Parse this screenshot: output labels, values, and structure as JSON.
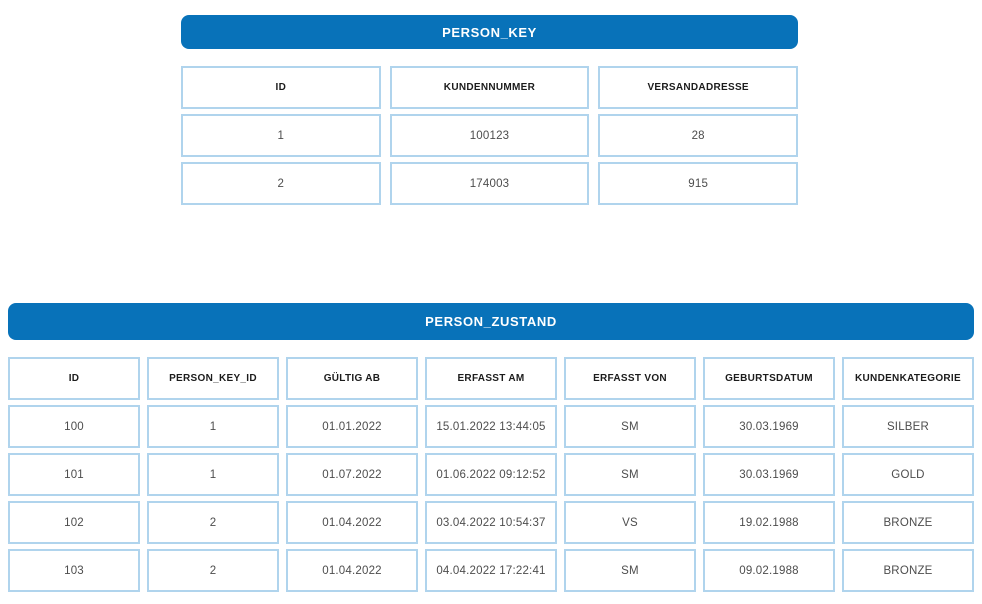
{
  "colors": {
    "page_bg": "#ffffff",
    "title_bar_bg": "#0872b9",
    "title_text": "#ffffff",
    "cell_border": "#b0d4ed",
    "header_text": "#1c1c1c",
    "cell_text": "#4d4d4d"
  },
  "tables": [
    {
      "title": "PERSON_KEY",
      "columns": [
        "ID",
        "KUNDENNUMMER",
        "VERSANDADRESSE"
      ],
      "rows": [
        [
          "1",
          "100123",
          "28"
        ],
        [
          "2",
          "174003",
          "915"
        ]
      ]
    },
    {
      "title": "PERSON_ZUSTAND",
      "columns": [
        "ID",
        "PERSON_KEY_ID",
        "GÜLTIG AB",
        "ERFASST AM",
        "ERFASST VON",
        "GEBURTSDATUM",
        "KUNDENKATEGORIE"
      ],
      "rows": [
        [
          "100",
          "1",
          "01.01.2022",
          "15.01.2022 13:44:05",
          "SM",
          "30.03.1969",
          "SILBER"
        ],
        [
          "101",
          "1",
          "01.07.2022",
          "01.06.2022 09:12:52",
          "SM",
          "30.03.1969",
          "GOLD"
        ],
        [
          "102",
          "2",
          "01.04.2022",
          "03.04.2022 10:54:37",
          "VS",
          "19.02.1988",
          "BRONZE"
        ],
        [
          "103",
          "2",
          "01.04.2022",
          "04.04.2022 17:22:41",
          "SM",
          "09.02.1988",
          "BRONZE"
        ]
      ]
    }
  ]
}
